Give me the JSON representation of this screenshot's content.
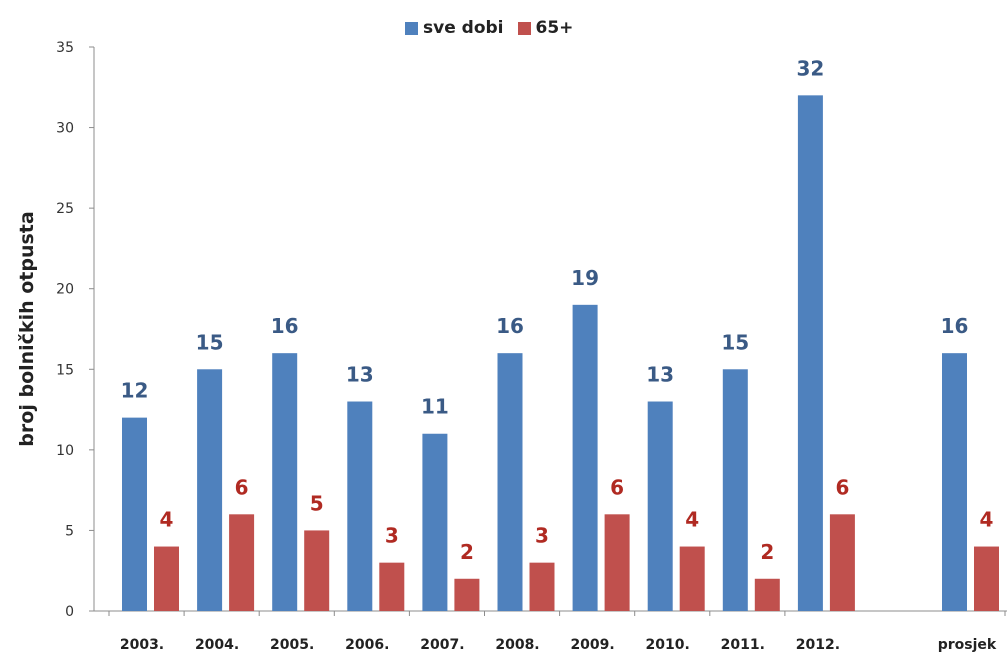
{
  "chart_data": {
    "type": "bar",
    "ylabel": "broj bolničkih otpusta",
    "ylim": [
      0,
      35
    ],
    "yticks": [
      0,
      5,
      10,
      15,
      20,
      25,
      30,
      35
    ],
    "grid": false,
    "legend_position": "top",
    "categories": [
      "2003.",
      "2004.",
      "2005.",
      "2006.",
      "2007.",
      "2008.",
      "2009.",
      "2010.",
      "2011.",
      "2012.",
      "prosjek"
    ],
    "series": [
      {
        "name": "sve dobi",
        "color": "#4f81bd",
        "label_color": "#3a5a85",
        "values": [
          12,
          15,
          16,
          13,
          11,
          16,
          19,
          13,
          15,
          32,
          16
        ]
      },
      {
        "name": "65+",
        "color": "#c0504d",
        "label_color": "#b02a22",
        "values": [
          4,
          6,
          5,
          3,
          2,
          3,
          6,
          4,
          2,
          6,
          4
        ]
      }
    ]
  }
}
